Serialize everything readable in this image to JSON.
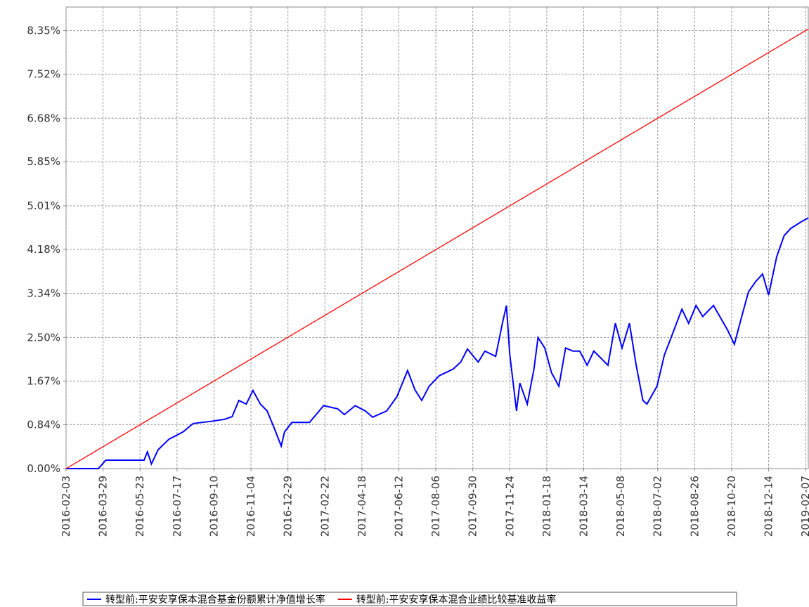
{
  "chart_data": {
    "type": "line",
    "xlim": [
      "2016-02-03",
      "2019-02-11"
    ],
    "xticks": [
      "2016-02-03",
      "2016-03-29",
      "2016-05-23",
      "2016-07-17",
      "2016-09-10",
      "2016-11-04",
      "2016-12-29",
      "2017-02-22",
      "2017-04-18",
      "2017-06-12",
      "2017-08-06",
      "2017-09-30",
      "2017-11-24",
      "2018-01-18",
      "2018-03-14",
      "2018-05-08",
      "2018-07-02",
      "2018-08-26",
      "2018-10-20",
      "2018-12-14",
      "2019-02-07"
    ],
    "ylim": [
      0,
      8.8
    ],
    "yticks": [
      {
        "value": 0,
        "label": "0.00%"
      },
      {
        "value": 0.84,
        "label": "0.84%"
      },
      {
        "value": 1.67,
        "label": "1.67%"
      },
      {
        "value": 2.5,
        "label": "2.50%"
      },
      {
        "value": 3.34,
        "label": "3.34%"
      },
      {
        "value": 4.18,
        "label": "4.18%"
      },
      {
        "value": 5.01,
        "label": "5.01%"
      },
      {
        "value": 5.85,
        "label": "5.85%"
      },
      {
        "value": 6.68,
        "label": "6.68%"
      },
      {
        "value": 7.52,
        "label": "7.52%"
      },
      {
        "value": 8.35,
        "label": "8.35%"
      }
    ],
    "grid": true,
    "series": [
      {
        "name": "转型前:平安安享保本混合基金份额累计净值增长率",
        "color": "#0000ff",
        "x": [
          "2016-02-03",
          "2016-03-22",
          "2016-04-02",
          "2016-05-29",
          "2016-06-03",
          "2016-06-09",
          "2016-06-19",
          "2016-07-05",
          "2016-07-26",
          "2016-08-10",
          "2016-09-05",
          "2016-09-26",
          "2016-10-07",
          "2016-10-17",
          "2016-10-28",
          "2016-11-07",
          "2016-11-18",
          "2016-11-28",
          "2016-12-09",
          "2016-12-19",
          "2016-12-24",
          "2017-01-04",
          "2017-01-30",
          "2017-02-09",
          "2017-02-20",
          "2017-03-13",
          "2017-03-23",
          "2017-04-08",
          "2017-04-23",
          "2017-05-04",
          "2017-05-25",
          "2017-06-09",
          "2017-06-25",
          "2017-07-06",
          "2017-07-16",
          "2017-07-27",
          "2017-08-11",
          "2017-09-01",
          "2017-09-12",
          "2017-09-22",
          "2017-10-08",
          "2017-10-18",
          "2017-11-03",
          "2017-11-13",
          "2017-11-19",
          "2017-11-24",
          "2017-12-04",
          "2017-12-09",
          "2017-12-20",
          "2017-12-30",
          "2018-01-05",
          "2018-01-15",
          "2018-01-25",
          "2018-02-05",
          "2018-02-15",
          "2018-02-26",
          "2018-03-08",
          "2018-03-19",
          "2018-03-29",
          "2018-04-09",
          "2018-04-19",
          "2018-04-30",
          "2018-05-10",
          "2018-05-21",
          "2018-05-31",
          "2018-06-10",
          "2018-06-16",
          "2018-07-01",
          "2018-07-12",
          "2018-07-22",
          "2018-08-07",
          "2018-08-17",
          "2018-08-28",
          "2018-09-07",
          "2018-09-23",
          "2018-10-14",
          "2018-10-24",
          "2018-11-04",
          "2018-11-14",
          "2018-11-25",
          "2018-12-05",
          "2018-12-14",
          "2018-12-26",
          "2019-01-06",
          "2019-01-16",
          "2019-02-01",
          "2019-02-11"
        ],
        "values": [
          0,
          0,
          0.16,
          0.16,
          0.32,
          0.09,
          0.36,
          0.56,
          0.7,
          0.86,
          0.9,
          0.94,
          0.99,
          1.3,
          1.23,
          1.49,
          1.23,
          1.1,
          0.76,
          0.43,
          0.7,
          0.88,
          0.88,
          1.03,
          1.2,
          1.14,
          1.03,
          1.2,
          1.1,
          0.98,
          1.1,
          1.37,
          1.87,
          1.5,
          1.3,
          1.57,
          1.77,
          1.9,
          2.03,
          2.28,
          2.03,
          2.24,
          2.14,
          2.77,
          3.11,
          2.17,
          1.1,
          1.63,
          1.23,
          1.9,
          2.5,
          2.3,
          1.83,
          1.57,
          2.3,
          2.24,
          2.24,
          1.97,
          2.24,
          2.1,
          1.97,
          2.77,
          2.3,
          2.77,
          1.97,
          1.3,
          1.23,
          1.57,
          2.17,
          2.5,
          3.04,
          2.77,
          3.11,
          2.9,
          3.11,
          2.64,
          2.37,
          2.9,
          3.37,
          3.57,
          3.71,
          3.31,
          4.04,
          4.44,
          4.58,
          4.71,
          4.78
        ]
      },
      {
        "name": "转型前:平安安享保本混合业绩比较基准收益率",
        "color": "#ff0000",
        "x": [
          "2016-02-03",
          "2019-02-11"
        ],
        "values": [
          0,
          8.38
        ]
      }
    ]
  }
}
